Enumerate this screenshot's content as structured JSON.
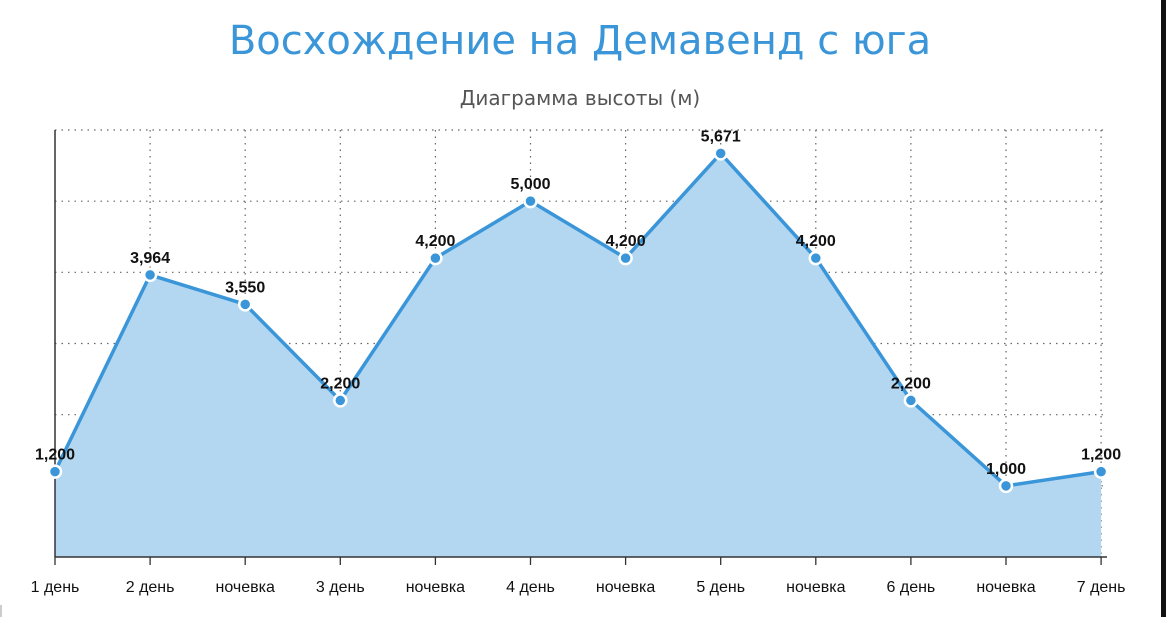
{
  "chart_data": {
    "type": "area",
    "title": "Восхождение на Демавенд с юга",
    "subtitle": "Диаграмма высоты (м)",
    "categories": [
      "1 день",
      "2 день",
      "ночевка",
      "3 день",
      "ночевка",
      "4 день",
      "ночевка",
      "5 день",
      "ночевка",
      "6 день",
      "ночевка",
      "7 день"
    ],
    "values": [
      1200,
      3964,
      3550,
      2200,
      4200,
      5000,
      4200,
      5671,
      4200,
      2200,
      1000,
      1200
    ],
    "data_labels": [
      "1,200",
      "3,964",
      "3,550",
      "2,200",
      "4,200",
      "5,000",
      "4,200",
      "5,671",
      "4,200",
      "2,200",
      "1,000",
      "1,200"
    ],
    "ylim": [
      0,
      6000
    ],
    "grid": true,
    "colors": {
      "line": "#3a96d8",
      "fill": "#b3d7f0",
      "marker_fill": "#3a96d8",
      "marker_stroke": "#ffffff",
      "title": "#3a96d8"
    }
  }
}
